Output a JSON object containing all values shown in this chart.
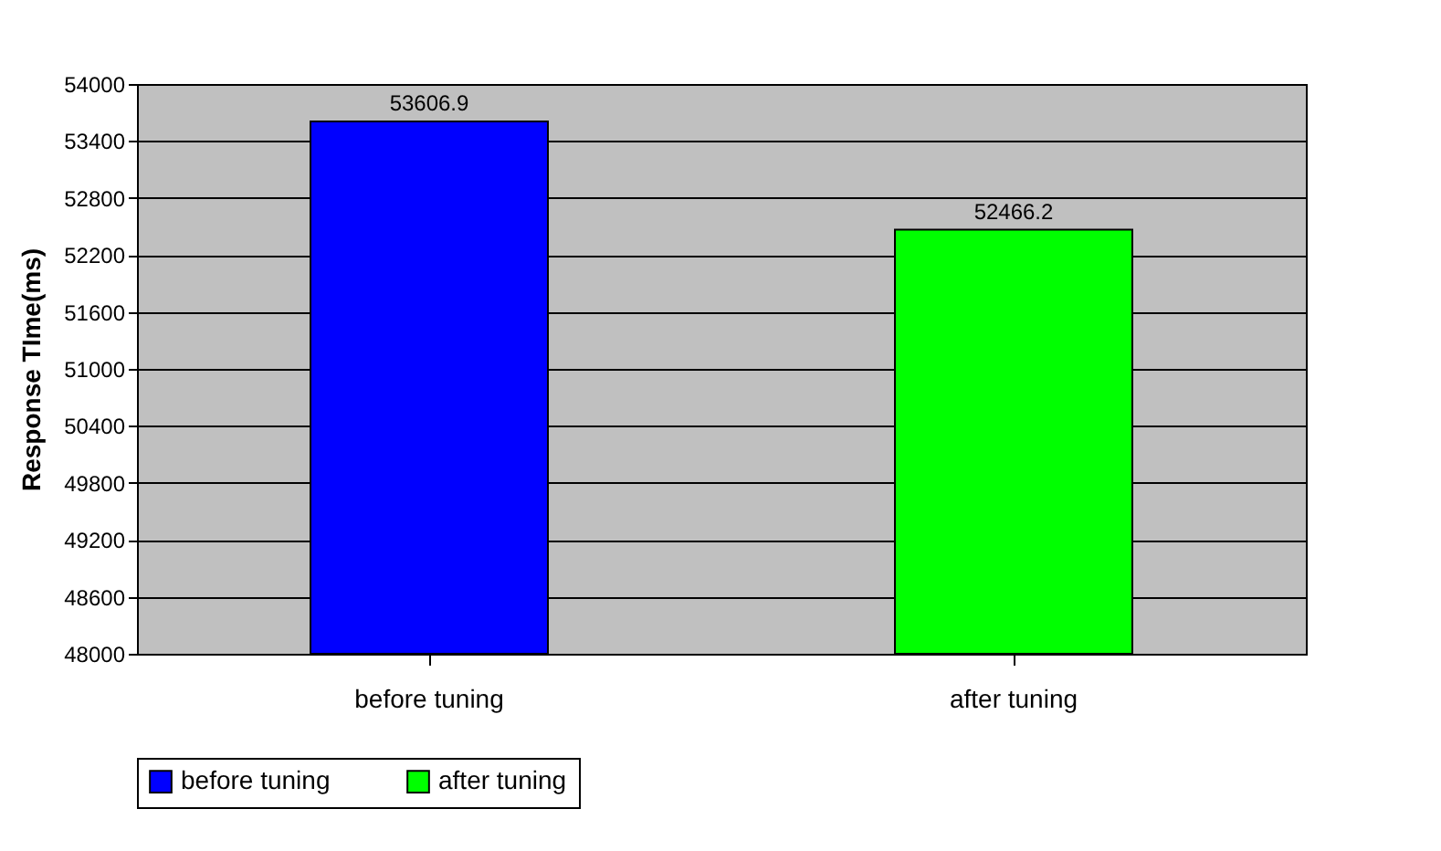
{
  "chart_data": {
    "type": "bar",
    "ylabel": "Response TIme(ms)",
    "categories": [
      "before tuning",
      "after tuning"
    ],
    "series": [
      {
        "name": "before tuning",
        "color": "#0000ff",
        "values": [
          53606.9,
          null
        ]
      },
      {
        "name": "after tuning",
        "color": "#00ff00",
        "values": [
          null,
          52466.2
        ]
      }
    ],
    "ylim": [
      48000,
      54000
    ],
    "yticks": [
      48000,
      48600,
      49200,
      49800,
      50400,
      51000,
      51600,
      52200,
      52800,
      53400,
      54000
    ],
    "grid": "y",
    "legend": "bottom",
    "data_labels": true
  }
}
